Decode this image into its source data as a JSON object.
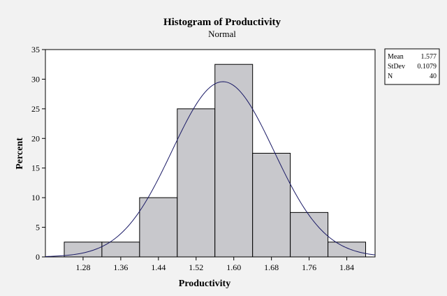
{
  "chart_data": {
    "type": "bar",
    "title": "Histogram of Productivity",
    "subtitle": "Normal",
    "xlabel": "Productivity",
    "ylabel": "Percent",
    "bin_width": 0.08,
    "bins": [
      {
        "start": 1.24,
        "end": 1.32,
        "value": 2.5
      },
      {
        "start": 1.32,
        "end": 1.4,
        "value": 2.5
      },
      {
        "start": 1.4,
        "end": 1.48,
        "value": 10
      },
      {
        "start": 1.48,
        "end": 1.56,
        "value": 25
      },
      {
        "start": 1.56,
        "end": 1.64,
        "value": 32.5
      },
      {
        "start": 1.64,
        "end": 1.72,
        "value": 17.5
      },
      {
        "start": 1.72,
        "end": 1.8,
        "value": 7.5
      },
      {
        "start": 1.8,
        "end": 1.88,
        "value": 2.5
      }
    ],
    "x_ticks": [
      "1.28",
      "1.36",
      "1.44",
      "1.52",
      "1.60",
      "1.68",
      "1.76",
      "1.84"
    ],
    "y_ticks": [
      "0",
      "5",
      "10",
      "15",
      "20",
      "25",
      "30",
      "35"
    ],
    "xlim": [
      1.2,
      1.9
    ],
    "ylim": [
      0,
      35
    ],
    "normal_curve": {
      "mean": 1.577,
      "sd": 0.1079,
      "n": 40
    },
    "legend": [
      {
        "label": "Mean",
        "value": "1.577"
      },
      {
        "label": "StDev",
        "value": "0.1079"
      },
      {
        "label": "N",
        "value": "40"
      }
    ],
    "legend_position": "top-right",
    "colors": {
      "bar_fill": "#c8c8cc",
      "bar_stroke": "#000000",
      "curve": "#1a1a66",
      "plot_bg": "#ffffff"
    }
  }
}
